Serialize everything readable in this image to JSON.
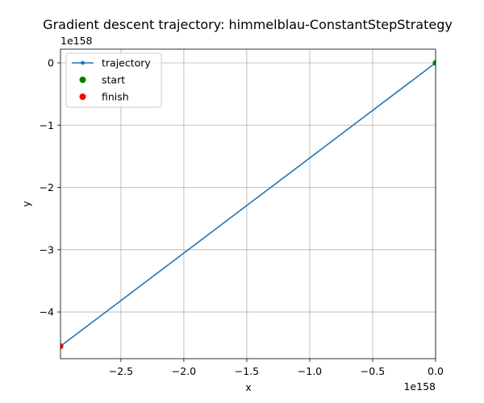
{
  "chart_data": {
    "type": "line",
    "title": "Gradient descent trajectory: himmelblau-ConstantStepStrategy",
    "xlabel": "x",
    "ylabel": "y",
    "x_offset_label": "1e158",
    "y_offset_label": "1e158",
    "xlim": [
      -2.98,
      0.0
    ],
    "ylim": [
      -4.75,
      0.22
    ],
    "x_ticks": [
      -2.5,
      -2.0,
      -1.5,
      -1.0,
      -0.5,
      0.0
    ],
    "x_tick_labels": [
      "−2.5",
      "−2.0",
      "−1.5",
      "−1.0",
      "−0.5",
      "0.0"
    ],
    "y_ticks": [
      0,
      -1,
      -2,
      -3,
      -4
    ],
    "y_tick_labels": [
      "0",
      "−1",
      "−2",
      "−3",
      "−4"
    ],
    "grid": true,
    "legend_position": "top-left",
    "series": [
      {
        "name": "trajectory",
        "kind": "line",
        "color": "#1f77b4",
        "x": [
          0.0,
          0.0,
          -2.98
        ],
        "y": [
          0.0,
          0.0,
          -4.55
        ]
      },
      {
        "name": "start",
        "kind": "scatter",
        "color": "#008000",
        "x": [
          0.0
        ],
        "y": [
          0.0
        ]
      },
      {
        "name": "finish",
        "kind": "scatter",
        "color": "#ff0000",
        "x": [
          -2.98
        ],
        "y": [
          -4.55
        ]
      }
    ]
  }
}
